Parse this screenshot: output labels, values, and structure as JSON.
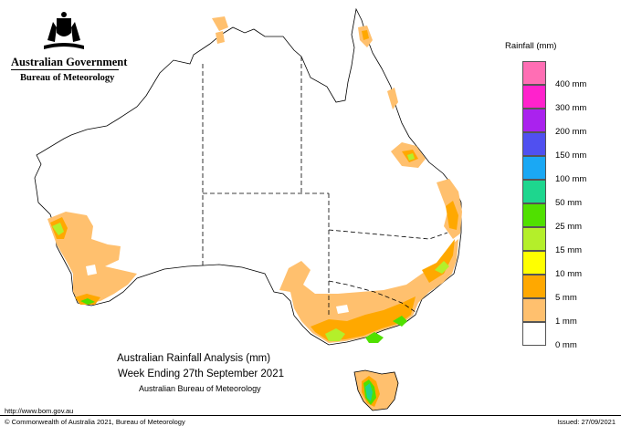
{
  "header": {
    "government": "Australian Government",
    "bureau": "Bureau of Meteorology",
    "crest_icon": "commonwealth-coat-of-arms"
  },
  "legend": {
    "title": "Rainfall (mm)",
    "items": [
      {
        "label": "",
        "color": "#ff6eb4"
      },
      {
        "label": "400 mm",
        "color": "#ff22cc"
      },
      {
        "label": "300 mm",
        "color": "#aa22ee"
      },
      {
        "label": "200 mm",
        "color": "#5050f0"
      },
      {
        "label": "150 mm",
        "color": "#1aa8f4"
      },
      {
        "label": "100 mm",
        "color": "#1ed68e"
      },
      {
        "label": "50 mm",
        "color": "#50e000"
      },
      {
        "label": "25 mm",
        "color": "#b4ef2a"
      },
      {
        "label": "15 mm",
        "color": "#ffff00"
      },
      {
        "label": "10 mm",
        "color": "#ffa800"
      },
      {
        "label": "5 mm",
        "color": "#ffc06e"
      },
      {
        "label": "1 mm",
        "color": "#ffffff"
      },
      {
        "label": "0 mm",
        "color": null
      }
    ]
  },
  "title": {
    "line1": "Australian Rainfall Analysis (mm)",
    "line2": "Week Ending 27th September 2021",
    "line3": "Australian Bureau of Meteorology"
  },
  "footer": {
    "url": "http://www.bom.gov.au",
    "copyright": "© Commonwealth of Australia 2021, Bureau of Meteorology",
    "issued": "Issued: 27/09/2021"
  }
}
